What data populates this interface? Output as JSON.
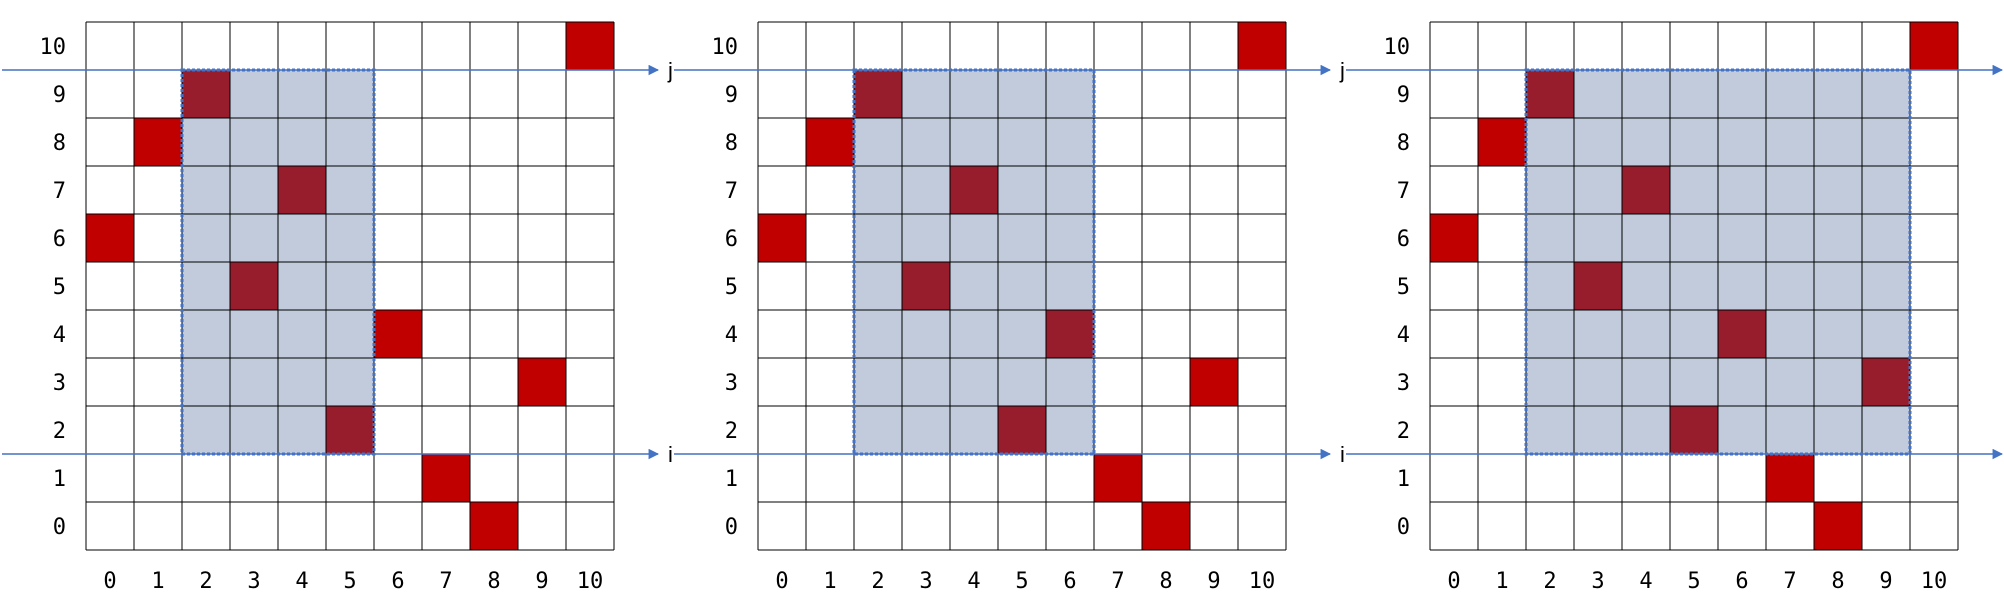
{
  "colors": {
    "background": "#ffffff",
    "grid_line": "#000000",
    "selection_fill": "#c1cbdc",
    "selection_border": "#4472c4",
    "point_outside": "#c00000",
    "point_inside": "#971c2c",
    "arrow_line": "#4472c4"
  },
  "grid_size": 11,
  "x_tick_labels": [
    "0",
    "1",
    "2",
    "3",
    "4",
    "5",
    "6",
    "7",
    "8",
    "9",
    "10"
  ],
  "y_tick_labels": [
    "0",
    "1",
    "2",
    "3",
    "4",
    "5",
    "6",
    "7",
    "8",
    "9",
    "10"
  ],
  "line_labels": {
    "lower": "i",
    "upper": "j"
  },
  "panels": [
    {
      "points": [
        {
          "x": 0,
          "y": 6
        },
        {
          "x": 1,
          "y": 8
        },
        {
          "x": 2,
          "y": 9
        },
        {
          "x": 3,
          "y": 5
        },
        {
          "x": 4,
          "y": 7
        },
        {
          "x": 5,
          "y": 2
        },
        {
          "x": 6,
          "y": 4
        },
        {
          "x": 7,
          "y": 1
        },
        {
          "x": 8,
          "y": 0
        },
        {
          "x": 9,
          "y": 3
        },
        {
          "x": 10,
          "y": 10
        }
      ],
      "selection": {
        "x_from": 2,
        "x_to": 5,
        "y_from": 2,
        "y_to": 9
      }
    },
    {
      "points": [
        {
          "x": 0,
          "y": 6
        },
        {
          "x": 1,
          "y": 8
        },
        {
          "x": 2,
          "y": 9
        },
        {
          "x": 3,
          "y": 5
        },
        {
          "x": 4,
          "y": 7
        },
        {
          "x": 5,
          "y": 2
        },
        {
          "x": 6,
          "y": 4
        },
        {
          "x": 7,
          "y": 1
        },
        {
          "x": 8,
          "y": 0
        },
        {
          "x": 9,
          "y": 3
        },
        {
          "x": 10,
          "y": 10
        }
      ],
      "selection": {
        "x_from": 2,
        "x_to": 6,
        "y_from": 2,
        "y_to": 9
      }
    },
    {
      "points": [
        {
          "x": 0,
          "y": 6
        },
        {
          "x": 1,
          "y": 8
        },
        {
          "x": 2,
          "y": 9
        },
        {
          "x": 3,
          "y": 5
        },
        {
          "x": 4,
          "y": 7
        },
        {
          "x": 5,
          "y": 2
        },
        {
          "x": 6,
          "y": 4
        },
        {
          "x": 7,
          "y": 1
        },
        {
          "x": 8,
          "y": 0
        },
        {
          "x": 9,
          "y": 3
        },
        {
          "x": 10,
          "y": 10
        }
      ],
      "selection": {
        "x_from": 2,
        "x_to": 9,
        "y_from": 2,
        "y_to": 9
      }
    }
  ]
}
